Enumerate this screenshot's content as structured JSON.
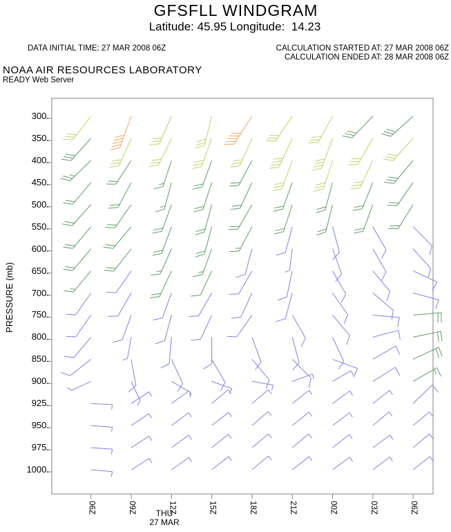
{
  "header": {
    "title": "GFSFLL WINDGRAM",
    "subtitle": "Latitude: 45.95 Longitude:  14.23",
    "data_initial_time": "DATA INITIAL TIME: 27 MAR 2008 06Z",
    "calc_started": "CALCULATION STARTED AT: 27 MAR 2008 06Z",
    "calc_ended": "CALCULATION ENDED AT: 28 MAR 2008 06Z",
    "org": "NOAA AIR RESOURCES LABORATORY",
    "server": "READY Web Server"
  },
  "chart_data": {
    "type": "windgram-barb-grid",
    "title": "GFSFLL WINDGRAM",
    "ylabel": "PRESSURE (mb)",
    "pressure_tick_labels": [
      "300.",
      "350.",
      "400.",
      "450.",
      "500.",
      "550.",
      "600.",
      "650.",
      "700.",
      "750.",
      "800.",
      "850.",
      "900.",
      "925.",
      "950.",
      "975.",
      "1000."
    ],
    "pressure_values_mb": [
      300,
      350,
      400,
      450,
      500,
      550,
      600,
      650,
      700,
      750,
      800,
      850,
      900,
      925,
      950,
      975,
      1000
    ],
    "time_tick_labels": [
      "06Z",
      "09Z",
      "12Z",
      "15Z",
      "18Z",
      "21Z",
      "00Z",
      "03Z",
      "06Z"
    ],
    "day_label": "THU",
    "date_label": "27 MAR",
    "grid_note": "rows = pressure levels top(300mb) to bottom(1000mb); cols = times 06Z 27 MAR through 06Z 28 MAR",
    "speed_colors": {
      "b": "#8080de",
      "g": "#5f9b64",
      "y": "#c3cf6b",
      "o": "#f0a566"
    },
    "barb_encoding": "[staff_direction_deg_math_ccw_from_east (direction wind blows FROM, staff drawn outward from grid tip), feather_count (0.5 = half barb), color_key]",
    "barbs": [
      [
        [
          232,
          3,
          "y"
        ],
        [
          250,
          5,
          "o"
        ],
        [
          246,
          3,
          "y"
        ],
        [
          256,
          3,
          "y"
        ],
        [
          237,
          5,
          "o"
        ],
        [
          236,
          3,
          "y"
        ],
        [
          241,
          3,
          "y"
        ],
        [
          226,
          3,
          "g"
        ],
        [
          222,
          3,
          "g"
        ]
      ],
      [
        [
          228,
          3,
          "g"
        ],
        [
          246,
          3,
          "y"
        ],
        [
          244,
          3,
          "y"
        ],
        [
          250,
          3,
          "y"
        ],
        [
          246,
          3,
          "y"
        ],
        [
          245,
          4,
          "y"
        ],
        [
          250,
          4,
          "y"
        ],
        [
          240,
          3,
          "y"
        ],
        [
          228,
          3,
          "y"
        ]
      ],
      [
        [
          224,
          2.5,
          "g"
        ],
        [
          237,
          2,
          "g"
        ],
        [
          252,
          1.5,
          "g"
        ],
        [
          250,
          2,
          "g"
        ],
        [
          242,
          2,
          "g"
        ],
        [
          250,
          3,
          "y"
        ],
        [
          252,
          3,
          "y"
        ],
        [
          245,
          3,
          "y"
        ],
        [
          230,
          3,
          "g"
        ]
      ],
      [
        [
          230,
          2,
          "g"
        ],
        [
          242,
          2,
          "g"
        ],
        [
          255,
          1.5,
          "g"
        ],
        [
          252,
          2,
          "g"
        ],
        [
          245,
          2,
          "g"
        ],
        [
          250,
          2,
          "g"
        ],
        [
          255,
          2,
          "g"
        ],
        [
          248,
          2,
          "g"
        ],
        [
          235,
          2,
          "g"
        ]
      ],
      [
        [
          228,
          2,
          "g"
        ],
        [
          235,
          2,
          "g"
        ],
        [
          250,
          2,
          "g"
        ],
        [
          255,
          2,
          "g"
        ],
        [
          240,
          2,
          "g"
        ],
        [
          252,
          2,
          "g"
        ],
        [
          256,
          2,
          "g"
        ],
        [
          250,
          2,
          "g"
        ],
        [
          238,
          2,
          "g"
        ]
      ],
      [
        [
          230,
          2,
          "g"
        ],
        [
          230,
          2,
          "g"
        ],
        [
          250,
          2,
          "g"
        ],
        [
          255,
          2,
          "g"
        ],
        [
          242,
          1.5,
          "g"
        ],
        [
          255,
          1,
          "b"
        ],
        [
          285,
          1,
          "b"
        ],
        [
          300,
          1,
          "b"
        ],
        [
          315,
          1,
          "b"
        ]
      ],
      [
        [
          230,
          2,
          "g"
        ],
        [
          232,
          2,
          "g"
        ],
        [
          246,
          1.5,
          "g"
        ],
        [
          250,
          1.5,
          "g"
        ],
        [
          255,
          1,
          "b"
        ],
        [
          263,
          0.5,
          "b"
        ],
        [
          290,
          1,
          "b"
        ],
        [
          300,
          1,
          "b"
        ],
        [
          312,
          1,
          "b"
        ]
      ],
      [
        [
          230,
          1.5,
          "g"
        ],
        [
          235,
          1,
          "b"
        ],
        [
          245,
          2,
          "g"
        ],
        [
          245,
          1,
          "g"
        ],
        [
          240,
          1,
          "b"
        ],
        [
          258,
          1,
          "b"
        ],
        [
          300,
          1,
          "b"
        ],
        [
          310,
          1,
          "b"
        ],
        [
          335,
          1,
          "b"
        ]
      ],
      [
        [
          235,
          1,
          "b"
        ],
        [
          240,
          1,
          "b"
        ],
        [
          250,
          1,
          "b"
        ],
        [
          240,
          1,
          "b"
        ],
        [
          245,
          1,
          "b"
        ],
        [
          255,
          1,
          "b"
        ],
        [
          305,
          1,
          "b"
        ],
        [
          320,
          1,
          "b"
        ],
        [
          345,
          1,
          "b"
        ]
      ],
      [
        [
          235,
          1,
          "b"
        ],
        [
          250,
          1,
          "b"
        ],
        [
          255,
          1,
          "b"
        ],
        [
          245,
          1,
          "b"
        ],
        [
          235,
          1,
          "b"
        ],
        [
          300,
          1,
          "b"
        ],
        [
          310,
          1,
          "b"
        ],
        [
          355,
          1,
          "b"
        ],
        [
          5,
          2,
          "g"
        ]
      ],
      [
        [
          230,
          1,
          "b"
        ],
        [
          260,
          0.5,
          "b"
        ],
        [
          265,
          1,
          "b"
        ],
        [
          270,
          1,
          "b"
        ],
        [
          290,
          1,
          "b"
        ],
        [
          285,
          1,
          "b"
        ],
        [
          295,
          1,
          "b"
        ],
        [
          15,
          1,
          "b"
        ],
        [
          12,
          2,
          "g"
        ]
      ],
      [
        [
          218,
          1,
          "b"
        ],
        [
          280,
          1,
          "b"
        ],
        [
          295,
          1,
          "b"
        ],
        [
          300,
          1,
          "b"
        ],
        [
          310,
          1,
          "b"
        ],
        [
          315,
          1,
          "b"
        ],
        [
          340,
          1,
          "b"
        ],
        [
          30,
          1,
          "b"
        ],
        [
          25,
          2,
          "g"
        ]
      ],
      [
        [
          205,
          0.5,
          "b"
        ],
        [
          295,
          0.5,
          "b"
        ],
        [
          330,
          0.5,
          "b"
        ],
        [
          340,
          0.5,
          "b"
        ],
        [
          350,
          0.5,
          "b"
        ],
        [
          20,
          0.5,
          "b"
        ],
        [
          30,
          0.5,
          "b"
        ],
        [
          32,
          1,
          "b"
        ],
        [
          30,
          1.5,
          "g"
        ]
      ],
      [
        [
          357,
          0.5,
          "b"
        ],
        [
          33,
          0.5,
          "b"
        ],
        [
          36,
          0.5,
          "b"
        ],
        [
          40,
          0.5,
          "b"
        ],
        [
          40,
          0.5,
          "b"
        ],
        [
          38,
          0.5,
          "b"
        ],
        [
          36,
          0.5,
          "b"
        ],
        [
          38,
          0.5,
          "b"
        ],
        [
          44,
          1,
          "b"
        ]
      ],
      [
        [
          356,
          0.5,
          "b"
        ],
        [
          34,
          0.5,
          "b"
        ],
        [
          37,
          0.5,
          "b"
        ],
        [
          38,
          0.5,
          "b"
        ],
        [
          41,
          0.5,
          "b"
        ],
        [
          39,
          0.5,
          "b"
        ],
        [
          37,
          0.5,
          "b"
        ],
        [
          40,
          0.5,
          "b"
        ],
        [
          40,
          0.5,
          "b"
        ]
      ],
      [
        [
          356,
          0.5,
          "b"
        ],
        [
          33,
          0.5,
          "b"
        ],
        [
          36,
          0.5,
          "b"
        ],
        [
          39,
          0.5,
          "b"
        ],
        [
          40,
          0.5,
          "b"
        ],
        [
          40,
          0.5,
          "b"
        ],
        [
          38,
          0.5,
          "b"
        ],
        [
          36,
          0.5,
          "b"
        ],
        [
          40,
          0.5,
          "b"
        ]
      ],
      [
        [
          355,
          0.5,
          "b"
        ],
        [
          32,
          0.5,
          "b"
        ],
        [
          35,
          0.5,
          "b"
        ],
        [
          38,
          0.5,
          "b"
        ],
        [
          40,
          0.5,
          "b"
        ],
        [
          38,
          0.5,
          "b"
        ],
        [
          36,
          0.5,
          "b"
        ],
        [
          37,
          0.5,
          "b"
        ],
        [
          38,
          0.5,
          "b"
        ]
      ]
    ],
    "axis_color": "#828282"
  }
}
